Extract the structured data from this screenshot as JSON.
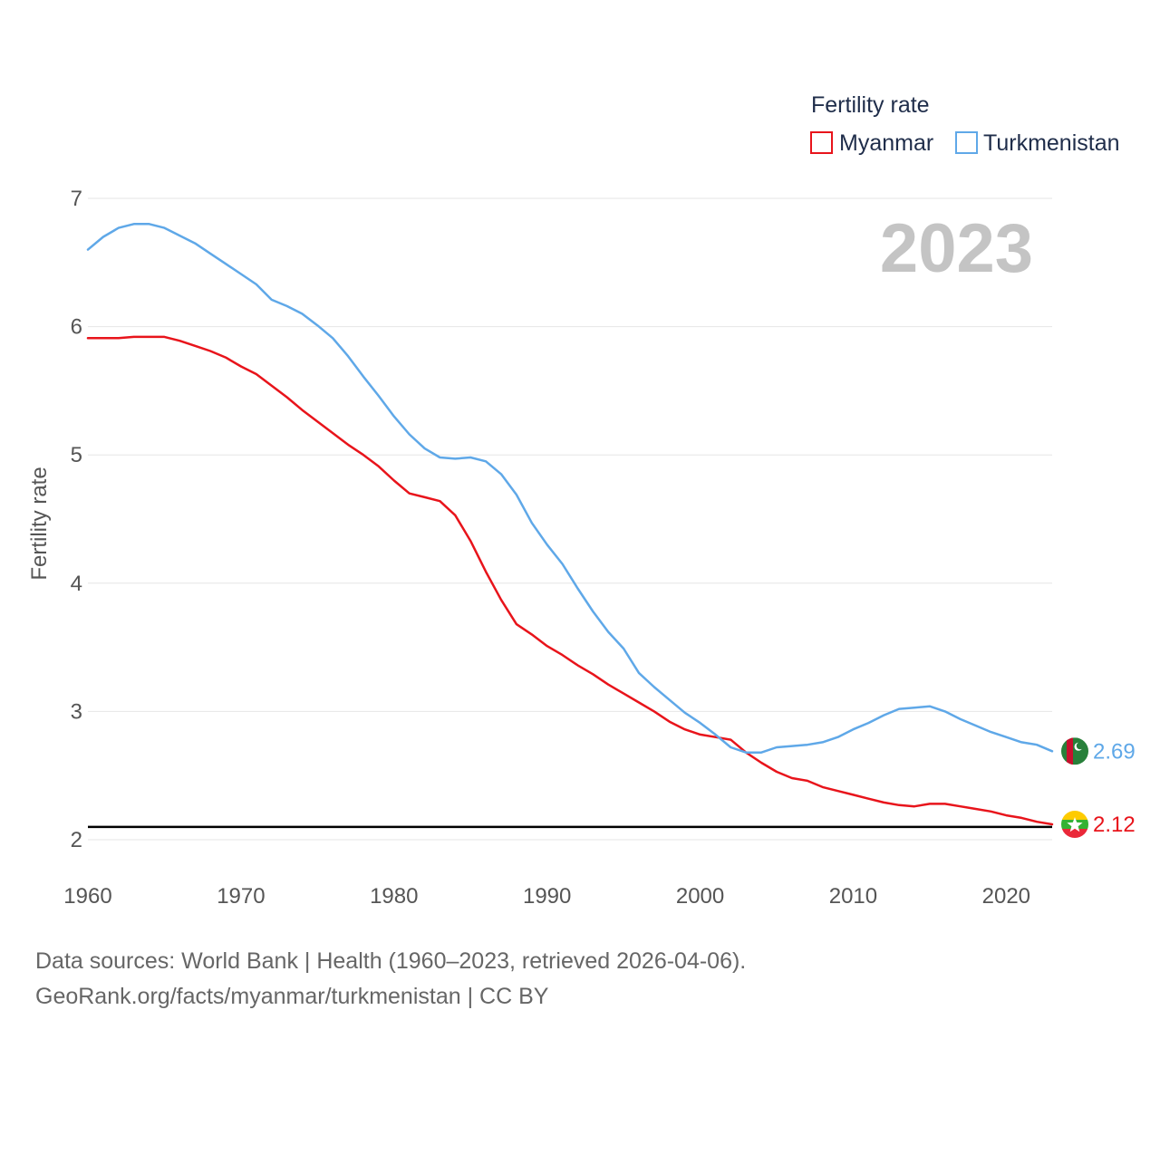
{
  "chart_data": {
    "type": "line",
    "legend_title": "Fertility rate",
    "ylabel": "Fertility rate",
    "xlabel": "",
    "year_label": "2023",
    "xlim": [
      1960,
      2023
    ],
    "ylim": [
      2,
      7
    ],
    "x_ticks": [
      1960,
      1970,
      1980,
      1990,
      2000,
      2010,
      2020
    ],
    "y_ticks": [
      2,
      3,
      4,
      5,
      6,
      7
    ],
    "reference_line": {
      "y": 2.1,
      "color": "#000000"
    },
    "legend_position": "top-right",
    "grid": true,
    "x": [
      1960,
      1961,
      1962,
      1963,
      1964,
      1965,
      1966,
      1967,
      1968,
      1969,
      1970,
      1971,
      1972,
      1973,
      1974,
      1975,
      1976,
      1977,
      1978,
      1979,
      1980,
      1981,
      1982,
      1983,
      1984,
      1985,
      1986,
      1987,
      1988,
      1989,
      1990,
      1991,
      1992,
      1993,
      1994,
      1995,
      1996,
      1997,
      1998,
      1999,
      2000,
      2001,
      2002,
      2003,
      2004,
      2005,
      2006,
      2007,
      2008,
      2009,
      2010,
      2011,
      2012,
      2013,
      2014,
      2015,
      2016,
      2017,
      2018,
      2019,
      2020,
      2021,
      2022,
      2023
    ],
    "series": [
      {
        "name": "Myanmar",
        "color": "#e8141b",
        "end_label": "2.12",
        "flag": "myanmar-flag-icon",
        "values": [
          5.91,
          5.91,
          5.91,
          5.92,
          5.92,
          5.92,
          5.89,
          5.85,
          5.81,
          5.76,
          5.69,
          5.63,
          5.54,
          5.45,
          5.35,
          5.26,
          5.17,
          5.08,
          5.0,
          4.91,
          4.8,
          4.7,
          4.67,
          4.64,
          4.53,
          4.33,
          4.09,
          3.87,
          3.68,
          3.6,
          3.51,
          3.44,
          3.36,
          3.29,
          3.21,
          3.14,
          3.07,
          3.0,
          2.92,
          2.86,
          2.82,
          2.8,
          2.78,
          2.68,
          2.6,
          2.53,
          2.48,
          2.46,
          2.41,
          2.38,
          2.35,
          2.32,
          2.29,
          2.27,
          2.26,
          2.28,
          2.28,
          2.26,
          2.24,
          2.22,
          2.19,
          2.17,
          2.14,
          2.12
        ]
      },
      {
        "name": "Turkmenistan",
        "color": "#5fa8e8",
        "end_label": "2.69",
        "flag": "turkmenistan-flag-icon",
        "values": [
          6.6,
          6.7,
          6.77,
          6.8,
          6.8,
          6.77,
          6.71,
          6.65,
          6.57,
          6.49,
          6.41,
          6.33,
          6.21,
          6.16,
          6.1,
          6.01,
          5.91,
          5.77,
          5.61,
          5.46,
          5.3,
          5.16,
          5.05,
          4.98,
          4.97,
          4.98,
          4.95,
          4.85,
          4.69,
          4.47,
          4.3,
          4.15,
          3.96,
          3.78,
          3.62,
          3.49,
          3.3,
          3.19,
          3.09,
          2.99,
          2.91,
          2.82,
          2.72,
          2.68,
          2.68,
          2.72,
          2.73,
          2.74,
          2.76,
          2.8,
          2.86,
          2.91,
          2.97,
          3.02,
          3.03,
          3.04,
          3.0,
          2.94,
          2.89,
          2.84,
          2.8,
          2.76,
          2.74,
          2.69
        ]
      }
    ]
  },
  "footer": {
    "sources": "Data sources: World Bank | Health (1960–2023, retrieved 2026-04-06).",
    "link": "GeoRank.org/facts/myanmar/turkmenistan | CC BY"
  }
}
